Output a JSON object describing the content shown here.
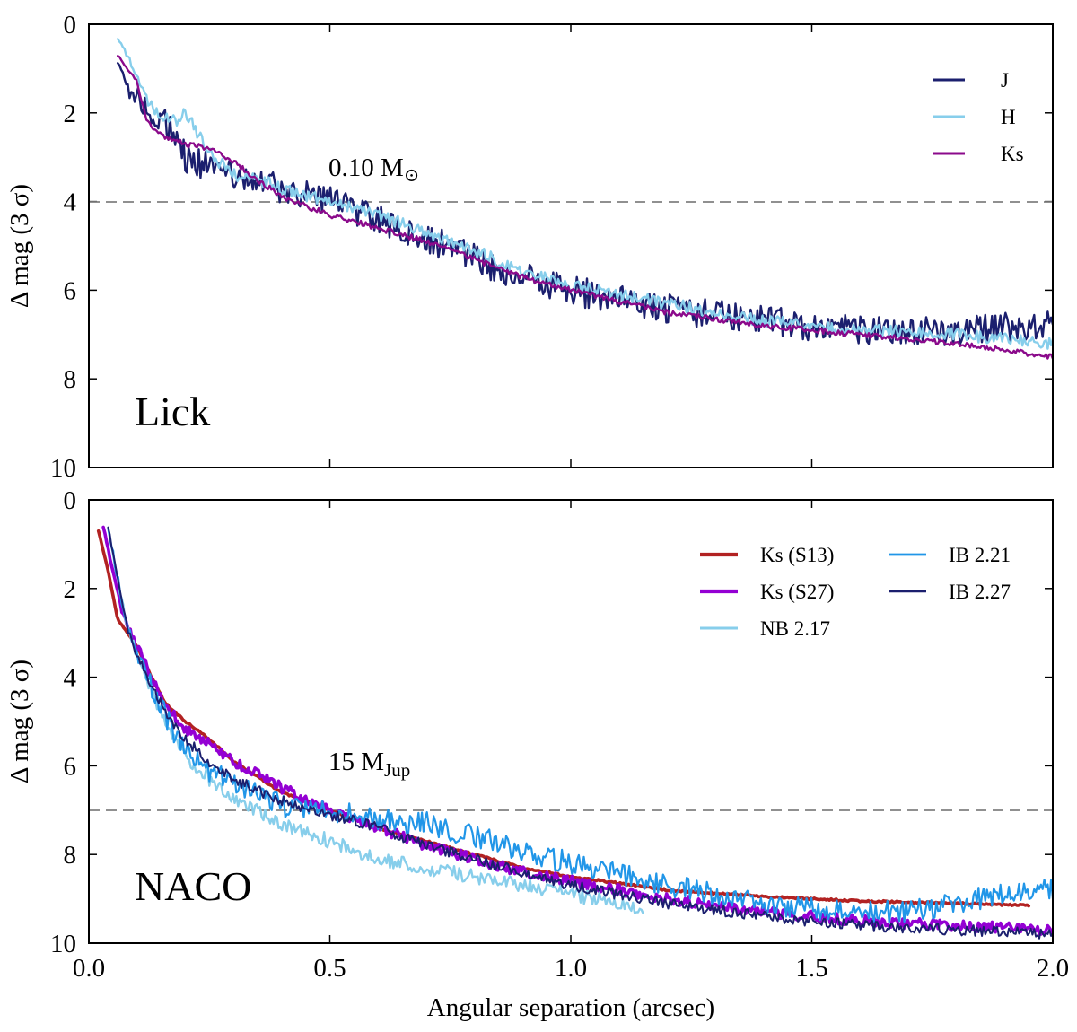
{
  "figure": {
    "xlabel": "Angular separation (arcsec)",
    "xlim": [
      0.0,
      2.0
    ],
    "xticks": [
      "0.0",
      "0.5",
      "1.0",
      "1.5",
      "2.0"
    ]
  },
  "chart_data": [
    {
      "type": "line",
      "panel_label": "Lick",
      "ylabel": "Δ mag (3 σ)",
      "ylim": [
        10,
        0
      ],
      "yticks": [
        "0",
        "2",
        "4",
        "6",
        "8",
        "10"
      ],
      "legend_position": "top-right",
      "reference": {
        "y": 4,
        "label_main": "0.10 M",
        "label_sub": "⊙"
      },
      "series": [
        {
          "name": "J",
          "color": "#1b1f6e",
          "width": 2.4,
          "noise": 0.34,
          "x_start": 0.06,
          "x_end": 2.0,
          "x": [
            0.06,
            0.08,
            0.1,
            0.13,
            0.16,
            0.18,
            0.2,
            0.25,
            0.3,
            0.35,
            0.4,
            0.5,
            0.6,
            0.7,
            0.8,
            0.9,
            1.0,
            1.2,
            1.4,
            1.6,
            1.8,
            2.0
          ],
          "y": [
            0.8,
            1.5,
            1.6,
            2.1,
            2.2,
            2.6,
            3.0,
            3.2,
            3.4,
            3.5,
            3.7,
            4.0,
            4.4,
            4.8,
            5.3,
            5.7,
            6.0,
            6.4,
            6.7,
            6.9,
            6.9,
            6.8
          ]
        },
        {
          "name": "H",
          "color": "#87ceeb",
          "width": 2.4,
          "noise": 0.14,
          "x_start": 0.06,
          "x_end": 2.0,
          "x": [
            0.06,
            0.08,
            0.1,
            0.12,
            0.15,
            0.18,
            0.2,
            0.25,
            0.3,
            0.35,
            0.4,
            0.5,
            0.6,
            0.7,
            0.8,
            0.9,
            1.0,
            1.2,
            1.4,
            1.6,
            1.8,
            2.0
          ],
          "y": [
            0.3,
            0.7,
            1.2,
            1.7,
            2.1,
            2.2,
            2.0,
            2.9,
            3.4,
            3.5,
            3.7,
            4.0,
            4.3,
            4.7,
            5.1,
            5.6,
            5.9,
            6.3,
            6.7,
            6.9,
            7.0,
            7.2
          ]
        },
        {
          "name": "Ks",
          "color": "#8b0a8b",
          "width": 2.4,
          "noise": 0.06,
          "x_start": 0.06,
          "x_end": 2.0,
          "x": [
            0.06,
            0.08,
            0.1,
            0.12,
            0.15,
            0.2,
            0.25,
            0.3,
            0.35,
            0.4,
            0.5,
            0.6,
            0.7,
            0.8,
            0.9,
            1.0,
            1.2,
            1.4,
            1.6,
            1.8,
            2.0
          ],
          "y": [
            0.7,
            1.0,
            1.3,
            2.2,
            2.5,
            2.7,
            2.8,
            3.1,
            3.5,
            3.9,
            4.3,
            4.6,
            4.9,
            5.3,
            5.7,
            6.0,
            6.5,
            6.8,
            7.0,
            7.2,
            7.5
          ]
        }
      ]
    },
    {
      "type": "line",
      "panel_label": "NACO",
      "ylabel": "Δ mag (3 σ)",
      "ylim": [
        10,
        0
      ],
      "yticks": [
        "0",
        "2",
        "4",
        "6",
        "8",
        "10"
      ],
      "legend_position": "top-right",
      "reference": {
        "y": 7,
        "label_main": "15 M",
        "label_sub": "Jup"
      },
      "series": [
        {
          "name": "Ks (S13)",
          "color": "#b22222",
          "width": 3.6,
          "noise": 0.02,
          "x_start": 0.02,
          "x_end": 1.95,
          "x": [
            0.02,
            0.04,
            0.06,
            0.08,
            0.1,
            0.13,
            0.16,
            0.2,
            0.25,
            0.3,
            0.4,
            0.5,
            0.6,
            0.7,
            0.8,
            0.9,
            1.0,
            1.2,
            1.4,
            1.6,
            1.8,
            1.95
          ],
          "y": [
            0.7,
            1.6,
            2.7,
            3.0,
            3.3,
            4.0,
            4.6,
            5.0,
            5.4,
            5.9,
            6.6,
            7.0,
            7.4,
            7.7,
            8.0,
            8.3,
            8.5,
            8.8,
            8.95,
            9.05,
            9.1,
            9.15
          ]
        },
        {
          "name": "Ks (S27)",
          "color": "#9400d3",
          "width": 3.6,
          "noise": 0.12,
          "x_start": 0.03,
          "x_end": 2.0,
          "x": [
            0.03,
            0.05,
            0.07,
            0.1,
            0.13,
            0.16,
            0.2,
            0.25,
            0.3,
            0.4,
            0.5,
            0.6,
            0.7,
            0.8,
            0.9,
            1.0,
            1.2,
            1.4,
            1.6,
            1.8,
            2.0
          ],
          "y": [
            0.6,
            1.6,
            2.6,
            3.3,
            4.0,
            4.6,
            5.2,
            5.5,
            5.9,
            6.5,
            7.0,
            7.4,
            7.8,
            8.1,
            8.4,
            8.6,
            9.0,
            9.3,
            9.5,
            9.6,
            9.7
          ]
        },
        {
          "name": "NB 2.17",
          "color": "#87ceeb",
          "width": 2.4,
          "noise": 0.16,
          "x_start": 0.04,
          "x_end": 1.15,
          "x": [
            0.04,
            0.06,
            0.08,
            0.1,
            0.13,
            0.16,
            0.2,
            0.25,
            0.3,
            0.4,
            0.5,
            0.6,
            0.7,
            0.8,
            0.9,
            1.0,
            1.1,
            1.15
          ],
          "y": [
            0.6,
            1.8,
            2.9,
            3.5,
            4.3,
            5.0,
            5.8,
            6.3,
            6.7,
            7.3,
            7.7,
            8.1,
            8.3,
            8.5,
            8.7,
            8.9,
            9.1,
            9.2
          ]
        },
        {
          "name": "IB 2.21",
          "color": "#2196e8",
          "width": 2.2,
          "noise": 0.26,
          "x_start": 0.04,
          "x_end": 2.0,
          "x": [
            0.04,
            0.06,
            0.08,
            0.1,
            0.13,
            0.16,
            0.2,
            0.25,
            0.3,
            0.4,
            0.5,
            0.6,
            0.7,
            0.8,
            0.9,
            1.0,
            1.2,
            1.4,
            1.6,
            1.7,
            1.8,
            1.9,
            2.0
          ],
          "y": [
            0.6,
            1.8,
            2.9,
            3.5,
            4.2,
            4.9,
            5.7,
            6.1,
            6.4,
            6.9,
            7.0,
            7.2,
            7.3,
            7.6,
            7.9,
            8.2,
            8.7,
            9.1,
            9.3,
            9.3,
            9.1,
            8.9,
            8.8
          ]
        },
        {
          "name": "IB 2.27",
          "color": "#1b1f6e",
          "width": 2.0,
          "noise": 0.12,
          "x_start": 0.04,
          "x_end": 2.0,
          "x": [
            0.04,
            0.06,
            0.08,
            0.1,
            0.13,
            0.16,
            0.2,
            0.25,
            0.3,
            0.4,
            0.5,
            0.6,
            0.7,
            0.8,
            0.9,
            1.0,
            1.2,
            1.4,
            1.6,
            1.8,
            2.0
          ],
          "y": [
            0.6,
            1.8,
            2.9,
            3.5,
            4.2,
            4.8,
            5.4,
            5.9,
            6.3,
            6.8,
            7.1,
            7.4,
            7.8,
            8.1,
            8.4,
            8.7,
            9.1,
            9.4,
            9.6,
            9.7,
            9.8
          ]
        }
      ]
    }
  ]
}
